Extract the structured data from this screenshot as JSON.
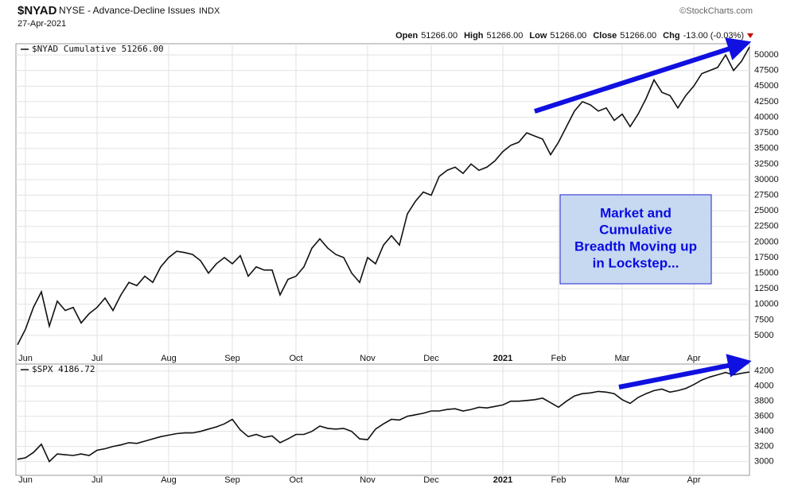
{
  "header": {
    "symbol": "$NYAD",
    "description": "NYSE - Advance-Decline Issues",
    "exchange": "INDX",
    "date": "27-Apr-2021",
    "source": "©StockCharts.com",
    "quote": [
      {
        "label": "Open",
        "value": "51266.00"
      },
      {
        "label": "High",
        "value": "51266.00"
      },
      {
        "label": "Low",
        "value": "51266.00"
      },
      {
        "label": "Close",
        "value": "51266.00"
      },
      {
        "label": "Chg",
        "value": "-13.00 (-0.03%)"
      }
    ]
  },
  "chart_data": [
    {
      "type": "line",
      "annotation": "Market and Cumulative Breadth Moving up in Lockstep...",
      "xlim": [
        0,
        92
      ],
      "xticks": [
        {
          "value": 1,
          "label": "Jun"
        },
        {
          "value": 10,
          "label": "Jul"
        },
        {
          "value": 19,
          "label": "Aug"
        },
        {
          "value": 27,
          "label": "Sep"
        },
        {
          "value": 35,
          "label": "Oct"
        },
        {
          "value": 44,
          "label": "Nov"
        },
        {
          "value": 52,
          "label": "Dec"
        },
        {
          "value": 61,
          "label": "2021"
        },
        {
          "value": 68,
          "label": "Feb"
        },
        {
          "value": 76,
          "label": "Mar"
        },
        {
          "value": 85,
          "label": "Apr"
        }
      ],
      "ylim": [
        2450,
        51800
      ],
      "yticks": [
        5000,
        7500,
        10000,
        12500,
        15000,
        17500,
        20000,
        22500,
        25000,
        27500,
        30000,
        32500,
        35000,
        37500,
        40000,
        42500,
        45000,
        47500,
        50000
      ],
      "grid": true,
      "series": [
        {
          "name": "$NYAD Cumulative 51266.00",
          "color": "#111111",
          "values": [
            3500,
            6000,
            9500,
            12000,
            6500,
            10500,
            9000,
            9500,
            7000,
            8500,
            9500,
            11000,
            9000,
            11500,
            13500,
            13000,
            14500,
            13500,
            16000,
            17500,
            18500,
            18300,
            18000,
            17000,
            15000,
            16500,
            17500,
            16500,
            17800,
            14500,
            16000,
            15500,
            15500,
            11500,
            14000,
            14500,
            16000,
            19000,
            20500,
            19000,
            18000,
            17500,
            15000,
            13500,
            17500,
            16500,
            19500,
            21000,
            19500,
            24500,
            26500,
            28000,
            27500,
            30500,
            31500,
            32000,
            31000,
            32500,
            31500,
            32000,
            33000,
            34500,
            35500,
            36000,
            37500,
            37000,
            36500,
            34000,
            36000,
            38500,
            41000,
            42500,
            42000,
            41000,
            41500,
            39500,
            40500,
            38500,
            40500,
            43000,
            46000,
            44000,
            43500,
            41500,
            43500,
            45000,
            47000,
            47500,
            48000,
            50000,
            47500,
            49000,
            51266
          ]
        }
      ]
    },
    {
      "type": "line",
      "xlim": [
        0,
        92
      ],
      "xticks": [
        {
          "value": 1,
          "label": "Jun"
        },
        {
          "value": 10,
          "label": "Jul"
        },
        {
          "value": 19,
          "label": "Aug"
        },
        {
          "value": 27,
          "label": "Sep"
        },
        {
          "value": 35,
          "label": "Oct"
        },
        {
          "value": 44,
          "label": "Nov"
        },
        {
          "value": 52,
          "label": "Dec"
        },
        {
          "value": 61,
          "label": "2021"
        },
        {
          "value": 68,
          "label": "Feb"
        },
        {
          "value": 76,
          "label": "Mar"
        },
        {
          "value": 85,
          "label": "Apr"
        }
      ],
      "ylim": [
        2880,
        4250
      ],
      "yticks": [
        3000,
        3200,
        3400,
        3600,
        3800,
        4000,
        4200
      ],
      "grid": true,
      "series": [
        {
          "name": "$SPX 4186.72",
          "color": "#111111",
          "values": [
            3030,
            3050,
            3120,
            3230,
            3000,
            3100,
            3090,
            3080,
            3100,
            3080,
            3150,
            3170,
            3200,
            3220,
            3250,
            3240,
            3270,
            3300,
            3330,
            3350,
            3370,
            3380,
            3380,
            3400,
            3430,
            3460,
            3500,
            3560,
            3420,
            3330,
            3360,
            3320,
            3340,
            3250,
            3300,
            3360,
            3360,
            3400,
            3470,
            3440,
            3430,
            3440,
            3400,
            3300,
            3290,
            3430,
            3500,
            3560,
            3550,
            3600,
            3620,
            3640,
            3670,
            3670,
            3690,
            3700,
            3670,
            3690,
            3720,
            3710,
            3730,
            3750,
            3800,
            3800,
            3810,
            3820,
            3840,
            3780,
            3720,
            3800,
            3870,
            3900,
            3910,
            3930,
            3920,
            3900,
            3820,
            3770,
            3850,
            3900,
            3940,
            3960,
            3920,
            3940,
            3970,
            4020,
            4080,
            4120,
            4150,
            4180,
            4150,
            4170,
            4186.72
          ]
        }
      ]
    }
  ]
}
